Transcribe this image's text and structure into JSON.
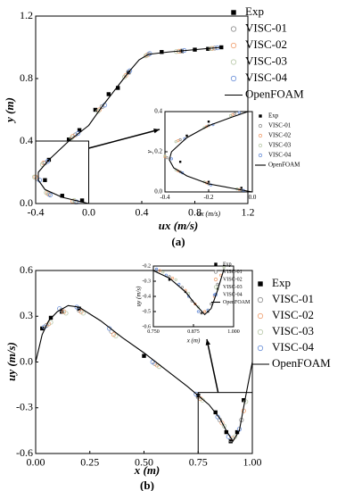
{
  "chart_data": [
    {
      "type": "scatter-line",
      "caption": "(a)",
      "xlabel": "ux (m/s)",
      "ylabel": "y (m)",
      "xlim": [
        -0.4,
        1.2
      ],
      "xticks": [
        -0.4,
        {
          "value": 0,
          "label": "0.0"
        },
        0.4,
        0.8,
        1.2
      ],
      "ylim": [
        0,
        1.2
      ],
      "yticks": [
        {
          "value": 0,
          "label": "0.0"
        },
        0.4,
        0.8,
        1.2
      ],
      "series": [
        {
          "name": "Exp",
          "color": "#000000",
          "marker": "square",
          "x": [
            -0.05,
            -0.2,
            -0.33,
            -0.3,
            -0.15,
            -0.07,
            0.05,
            0.15,
            0.22,
            0.3,
            0.55,
            0.7,
            0.8,
            0.9,
            1.0
          ],
          "values": [
            0.02,
            0.05,
            0.15,
            0.28,
            0.41,
            0.47,
            0.6,
            0.7,
            0.74,
            0.84,
            0.97,
            0.975,
            0.985,
            0.99,
            1.0
          ]
        },
        {
          "name": "VISC-01",
          "color": "#8c8c8c",
          "marker": "circle",
          "x": [
            -0.1,
            -0.3,
            -0.39,
            -0.33,
            -0.1,
            0.1,
            0.3,
            0.45,
            0.7,
            0.95
          ],
          "values": [
            0.01,
            0.06,
            0.16,
            0.26,
            0.44,
            0.62,
            0.84,
            0.955,
            0.977,
            0.995
          ]
        },
        {
          "name": "VISC-02",
          "color": "#f0a070",
          "marker": "circle",
          "x": [
            -0.12,
            -0.31,
            -0.4,
            -0.34,
            -0.12,
            0.08,
            0.28,
            0.44,
            0.68,
            0.93
          ],
          "values": [
            0.015,
            0.065,
            0.17,
            0.26,
            0.43,
            0.6,
            0.82,
            0.95,
            0.975,
            0.993
          ]
        },
        {
          "name": "VISC-03",
          "color": "#b8c8a8",
          "marker": "circle",
          "x": [
            -0.11,
            -0.32,
            -0.41,
            -0.35,
            -0.13,
            0.07,
            0.27,
            0.43,
            0.66,
            0.92
          ],
          "values": [
            0.02,
            0.07,
            0.17,
            0.25,
            0.42,
            0.59,
            0.81,
            0.945,
            0.973,
            0.992
          ]
        },
        {
          "name": "VISC-04",
          "color": "#6a8fd8",
          "marker": "circle",
          "x": [
            -0.09,
            -0.29,
            -0.37,
            -0.31,
            -0.08,
            0.12,
            0.31,
            0.46,
            0.72,
            0.97
          ],
          "values": [
            0.01,
            0.055,
            0.15,
            0.27,
            0.45,
            0.63,
            0.85,
            0.96,
            0.98,
            0.997
          ]
        },
        {
          "name": "OpenFOAM",
          "color": "#000000",
          "marker": "line",
          "x": [
            0,
            -0.2,
            -0.33,
            -0.38,
            -0.38,
            -0.3,
            -0.15,
            0,
            0.1,
            0.2,
            0.3,
            0.38,
            0.45,
            0.6,
            0.8,
            1.0
          ],
          "values": [
            0,
            0.04,
            0.09,
            0.15,
            0.2,
            0.28,
            0.4,
            0.5,
            0.62,
            0.73,
            0.84,
            0.92,
            0.955,
            0.97,
            0.985,
            1.0
          ]
        }
      ]
    },
    {
      "type": "scatter-line",
      "xlabel": "ux (m/s)",
      "ylabel": "y",
      "xlim": [
        -0.4,
        0
      ],
      "xticks": [
        -0.4,
        -0.2,
        {
          "value": 0,
          "label": "0.0"
        }
      ],
      "ylim": [
        0,
        0.4
      ],
      "yticks": [
        {
          "value": 0,
          "label": "0.0"
        },
        0.2,
        0.4
      ],
      "series": [
        {
          "name": "Exp",
          "color": "#000000",
          "marker": "square",
          "x": [
            -0.05,
            -0.2,
            -0.33,
            -0.3,
            -0.2
          ],
          "values": [
            0.02,
            0.05,
            0.15,
            0.28,
            0.35
          ]
        },
        {
          "name": "VISC-01",
          "color": "#8c8c8c",
          "marker": "circle",
          "x": [
            -0.05,
            -0.2,
            -0.33,
            -0.39,
            -0.33,
            -0.2,
            -0.08
          ],
          "values": [
            0.01,
            0.04,
            0.1,
            0.17,
            0.26,
            0.33,
            0.39
          ]
        },
        {
          "name": "VISC-02",
          "color": "#f0a070",
          "marker": "circle",
          "x": [
            -0.06,
            -0.21,
            -0.34,
            -0.4,
            -0.34,
            -0.21,
            -0.09
          ],
          "values": [
            0.012,
            0.045,
            0.105,
            0.175,
            0.255,
            0.325,
            0.385
          ]
        },
        {
          "name": "VISC-03",
          "color": "#b8c8a8",
          "marker": "circle",
          "x": [
            -0.07,
            -0.22,
            -0.35,
            -0.4,
            -0.35,
            -0.22,
            -0.1
          ],
          "values": [
            0.015,
            0.05,
            0.11,
            0.18,
            0.25,
            0.32,
            0.38
          ]
        },
        {
          "name": "VISC-04",
          "color": "#6a8fd8",
          "marker": "circle",
          "x": [
            -0.04,
            -0.19,
            -0.32,
            -0.37,
            -0.31,
            -0.18,
            -0.06
          ],
          "values": [
            0.008,
            0.035,
            0.095,
            0.165,
            0.265,
            0.335,
            0.395
          ]
        },
        {
          "name": "OpenFOAM",
          "color": "#000000",
          "marker": "line",
          "x": [
            0,
            -0.1,
            -0.2,
            -0.3,
            -0.36,
            -0.38,
            -0.37,
            -0.3,
            -0.2,
            -0.1,
            -0.02
          ],
          "values": [
            0,
            0.02,
            0.04,
            0.08,
            0.12,
            0.16,
            0.2,
            0.27,
            0.33,
            0.37,
            0.4
          ]
        }
      ]
    },
    {
      "type": "scatter-line",
      "caption": "(b)",
      "xlabel": "x (m)",
      "ylabel": "uy (m/s)",
      "xlim": [
        0,
        1
      ],
      "xticks": [
        {
          "value": 0,
          "label": "0.00"
        },
        0.25,
        {
          "value": 0.5,
          "label": "0.50"
        },
        0.75,
        {
          "value": 1,
          "label": "1.00"
        }
      ],
      "ylim": [
        -0.6,
        0.6
      ],
      "yticks": [
        -0.6,
        -0.3,
        {
          "value": 0,
          "label": "0.0"
        },
        0.3,
        0.6
      ],
      "series": [
        {
          "name": "Exp",
          "color": "#000000",
          "marker": "square",
          "x": [
            0.03,
            0.07,
            0.12,
            0.2,
            0.5,
            0.75,
            0.83,
            0.88,
            0.9,
            0.93,
            0.96
          ],
          "values": [
            0.22,
            0.29,
            0.33,
            0.35,
            0.04,
            -0.22,
            -0.33,
            -0.46,
            -0.52,
            -0.46,
            -0.25
          ]
        },
        {
          "name": "VISC-01",
          "color": "#8c8c8c",
          "marker": "circle",
          "x": [
            0.05,
            0.12,
            0.2,
            0.35,
            0.55,
            0.75,
            0.85,
            0.9,
            0.95
          ],
          "values": [
            0.24,
            0.34,
            0.34,
            0.2,
            -0.01,
            -0.23,
            -0.38,
            -0.51,
            -0.38
          ]
        },
        {
          "name": "VISC-02",
          "color": "#f0a070",
          "marker": "circle",
          "x": [
            0.06,
            0.13,
            0.21,
            0.36,
            0.56,
            0.76,
            0.86,
            0.91,
            0.96
          ],
          "values": [
            0.25,
            0.33,
            0.33,
            0.18,
            -0.02,
            -0.24,
            -0.4,
            -0.5,
            -0.32
          ]
        },
        {
          "name": "VISC-03",
          "color": "#b8c8a8",
          "marker": "circle",
          "x": [
            0.07,
            0.14,
            0.22,
            0.37,
            0.57,
            0.77,
            0.87,
            0.92,
            0.97
          ],
          "values": [
            0.26,
            0.32,
            0.32,
            0.17,
            -0.03,
            -0.25,
            -0.42,
            -0.49,
            -0.26
          ]
        },
        {
          "name": "VISC-04",
          "color": "#6a8fd8",
          "marker": "circle",
          "x": [
            0.04,
            0.11,
            0.19,
            0.34,
            0.54,
            0.74,
            0.84,
            0.89,
            0.94
          ],
          "values": [
            0.23,
            0.35,
            0.36,
            0.22,
            0.0,
            -0.21,
            -0.36,
            -0.49,
            -0.44
          ]
        },
        {
          "name": "OpenFOAM",
          "color": "#000000",
          "marker": "line",
          "x": [
            0,
            0.03,
            0.06,
            0.1,
            0.15,
            0.2,
            0.3,
            0.4,
            0.5,
            0.6,
            0.7,
            0.8,
            0.85,
            0.88,
            0.91,
            0.94,
            0.97,
            1.0
          ],
          "values": [
            0,
            0.18,
            0.27,
            0.33,
            0.37,
            0.36,
            0.27,
            0.16,
            0.06,
            -0.05,
            -0.16,
            -0.28,
            -0.37,
            -0.45,
            -0.52,
            -0.45,
            -0.22,
            0
          ]
        }
      ]
    },
    {
      "type": "scatter-line",
      "xlabel": "x (m)",
      "ylabel": "uy (m/s)",
      "xlim": [
        0.75,
        1
      ],
      "xticks": [
        {
          "value": 0.75,
          "label": "0.750"
        },
        0.875,
        {
          "value": 1,
          "label": "1.000"
        }
      ],
      "ylim": [
        -0.6,
        -0.2
      ],
      "yticks": [
        -0.6,
        -0.5,
        -0.4,
        -0.3,
        -0.2
      ],
      "series": [
        {
          "name": "Exp",
          "color": "#000000",
          "marker": "square",
          "x": [
            0.8,
            0.85,
            0.88,
            0.9,
            0.92,
            0.95,
            0.97
          ],
          "values": [
            -0.29,
            -0.37,
            -0.45,
            -0.51,
            -0.5,
            -0.35,
            -0.2
          ]
        },
        {
          "name": "VISC-01",
          "color": "#8c8c8c",
          "marker": "circle",
          "x": [
            0.76,
            0.8,
            0.84,
            0.87,
            0.9,
            0.93,
            0.95
          ],
          "values": [
            -0.23,
            -0.27,
            -0.34,
            -0.43,
            -0.51,
            -0.45,
            -0.32
          ]
        },
        {
          "name": "VISC-02",
          "color": "#f0a070",
          "marker": "circle",
          "x": [
            0.77,
            0.81,
            0.85,
            0.88,
            0.91,
            0.94,
            0.96
          ],
          "values": [
            -0.23,
            -0.28,
            -0.36,
            -0.45,
            -0.5,
            -0.4,
            -0.26
          ]
        },
        {
          "name": "VISC-03",
          "color": "#b8c8a8",
          "marker": "circle",
          "x": [
            0.78,
            0.82,
            0.86,
            0.89,
            0.92,
            0.95,
            0.97
          ],
          "values": [
            -0.24,
            -0.29,
            -0.38,
            -0.47,
            -0.49,
            -0.35,
            -0.21
          ]
        },
        {
          "name": "VISC-04",
          "color": "#6a8fd8",
          "marker": "circle",
          "x": [
            0.76,
            0.79,
            0.83,
            0.86,
            0.89,
            0.92,
            0.94
          ],
          "values": [
            -0.22,
            -0.26,
            -0.32,
            -0.4,
            -0.5,
            -0.49,
            -0.39
          ]
        },
        {
          "name": "OpenFOAM",
          "color": "#000000",
          "marker": "line",
          "x": [
            0.75,
            0.8,
            0.85,
            0.88,
            0.91,
            0.93,
            0.95,
            0.97
          ],
          "values": [
            -0.23,
            -0.28,
            -0.37,
            -0.45,
            -0.52,
            -0.48,
            -0.36,
            -0.22
          ]
        }
      ]
    }
  ]
}
